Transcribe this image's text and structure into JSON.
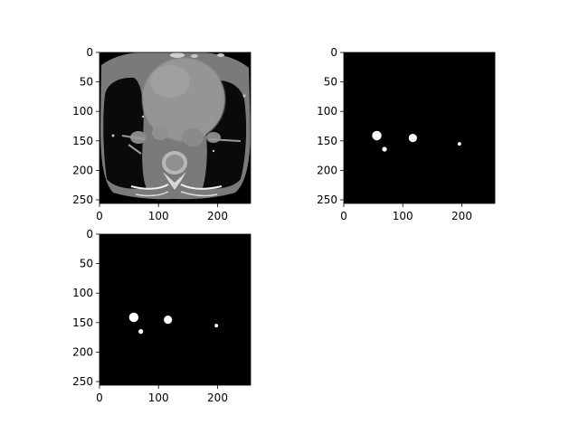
{
  "chart_data": [
    {
      "type": "image",
      "content": "axial chest CT slice (grayscale)",
      "colormap": "gray",
      "x_ticks": [
        "0",
        "100",
        "200"
      ],
      "y_ticks": [
        "0",
        "50",
        "100",
        "150",
        "200",
        "250"
      ],
      "xlim": [
        0,
        256
      ],
      "ylim": [
        256,
        0
      ],
      "xlabel": "",
      "ylabel": "",
      "title": ""
    },
    {
      "type": "image",
      "content": "binary mask",
      "colormap": "gray",
      "x_ticks": [
        "0",
        "100",
        "200"
      ],
      "y_ticks": [
        "0",
        "50",
        "100",
        "150",
        "200",
        "250"
      ],
      "xlim": [
        0,
        256
      ],
      "ylim": [
        256,
        0
      ],
      "xlabel": "",
      "ylabel": "",
      "title": "",
      "blobs": [
        {
          "x": 56,
          "y": 141,
          "r": 8
        },
        {
          "x": 69,
          "y": 164,
          "r": 4
        },
        {
          "x": 117,
          "y": 145,
          "r": 7
        },
        {
          "x": 196,
          "y": 155,
          "r": 3
        }
      ]
    },
    {
      "type": "image",
      "content": "binary mask",
      "colormap": "gray",
      "x_ticks": [
        "0",
        "100",
        "200"
      ],
      "y_ticks": [
        "0",
        "50",
        "100",
        "150",
        "200",
        "250"
      ],
      "xlim": [
        0,
        256
      ],
      "ylim": [
        256,
        0
      ],
      "xlabel": "",
      "ylabel": "",
      "title": "",
      "blobs": [
        {
          "x": 58,
          "y": 141,
          "r": 8
        },
        {
          "x": 70,
          "y": 165,
          "r": 4
        },
        {
          "x": 116,
          "y": 145,
          "r": 7
        },
        {
          "x": 198,
          "y": 155,
          "r": 3
        }
      ]
    }
  ]
}
